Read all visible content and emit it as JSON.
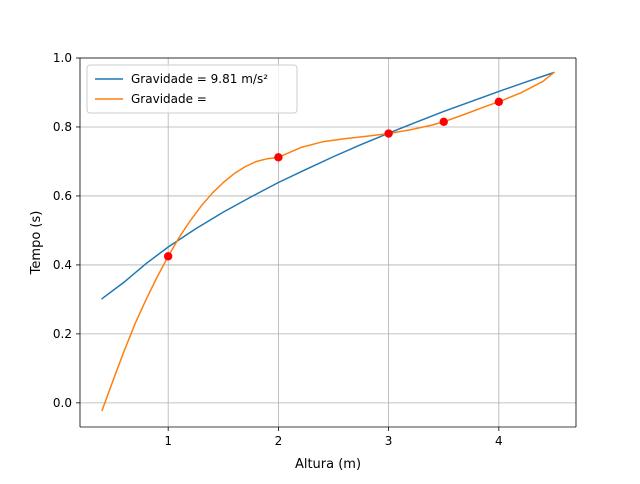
{
  "chart_data": {
    "type": "line",
    "title": "",
    "xlabel": "Altura (m)",
    "ylabel": "Tempo (s)",
    "xlim": [
      0.2,
      4.7
    ],
    "ylim": [
      -0.07,
      1.0
    ],
    "xticks": [
      1,
      2,
      3,
      4
    ],
    "yticks": [
      0.0,
      0.2,
      0.4,
      0.6,
      0.8,
      1.0
    ],
    "xtick_labels": [
      "1",
      "2",
      "3",
      "4"
    ],
    "ytick_labels": [
      "0.0",
      "0.2",
      "0.4",
      "0.6",
      "0.8",
      "1.0"
    ],
    "grid": true,
    "legend_position": "upper-left",
    "series": [
      {
        "name": "Gravidade = 9.81 m/s²",
        "kind": "line",
        "color": "#1f77b4",
        "x": [
          0.4,
          0.6,
          0.8,
          1.0,
          1.25,
          1.5,
          1.75,
          2.0,
          2.25,
          2.5,
          2.75,
          3.0,
          3.25,
          3.5,
          3.75,
          4.0,
          4.25,
          4.5
        ],
        "y": [
          0.302,
          0.35,
          0.404,
          0.452,
          0.505,
          0.553,
          0.597,
          0.639,
          0.677,
          0.714,
          0.749,
          0.782,
          0.814,
          0.845,
          0.874,
          0.903,
          0.931,
          0.958
        ]
      },
      {
        "name": "Gravidade =",
        "kind": "line",
        "color": "#ff7f0e",
        "x": [
          0.4,
          0.5,
          0.6,
          0.7,
          0.8,
          0.9,
          1.0,
          1.1,
          1.2,
          1.3,
          1.4,
          1.5,
          1.6,
          1.7,
          1.8,
          1.9,
          2.0,
          2.2,
          2.4,
          2.6,
          2.8,
          3.0,
          3.2,
          3.4,
          3.5,
          3.7,
          3.9,
          4.0,
          4.2,
          4.4,
          4.5
        ],
        "y": [
          -0.022,
          0.065,
          0.15,
          0.23,
          0.3,
          0.365,
          0.425,
          0.48,
          0.528,
          0.571,
          0.608,
          0.639,
          0.665,
          0.685,
          0.7,
          0.708,
          0.712,
          0.74,
          0.757,
          0.766,
          0.773,
          0.781,
          0.792,
          0.806,
          0.815,
          0.838,
          0.862,
          0.873,
          0.899,
          0.932,
          0.958
        ]
      },
      {
        "name": "",
        "kind": "scatter",
        "color": "#ff0000",
        "x": [
          1,
          2,
          3,
          3.5,
          4
        ],
        "y": [
          0.425,
          0.712,
          0.781,
          0.815,
          0.873
        ]
      }
    ]
  }
}
